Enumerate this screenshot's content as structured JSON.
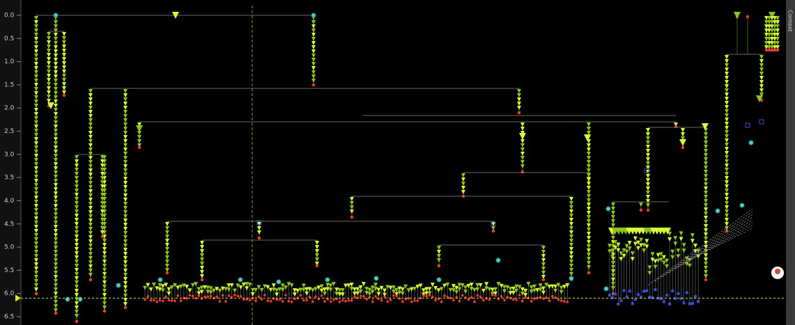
{
  "chart_data": {
    "type": "tree",
    "side_tab": "Context",
    "ylim": [
      0,
      6.5
    ],
    "yticks": [
      {
        "value": 0,
        "label": "0.0"
      },
      {
        "value": 0.5,
        "label": "0.5"
      },
      {
        "value": 1,
        "label": "1.0"
      },
      {
        "value": 1.5,
        "label": "1.5"
      },
      {
        "value": 2,
        "label": "2.0"
      },
      {
        "value": 2.5,
        "label": "2.5"
      },
      {
        "value": 3,
        "label": "3.0"
      },
      {
        "value": 3.5,
        "label": "3.5"
      },
      {
        "value": 4,
        "label": "4.0"
      },
      {
        "value": 4.5,
        "label": "4.5"
      },
      {
        "value": 5,
        "label": "5.0"
      },
      {
        "value": 5.5,
        "label": "5.5"
      },
      {
        "value": 6,
        "label": "6.0"
      },
      {
        "value": 6.5,
        "label": "6.5"
      }
    ],
    "cursor_y": 6.1,
    "cursor_color": "#e6e619"
  }
}
